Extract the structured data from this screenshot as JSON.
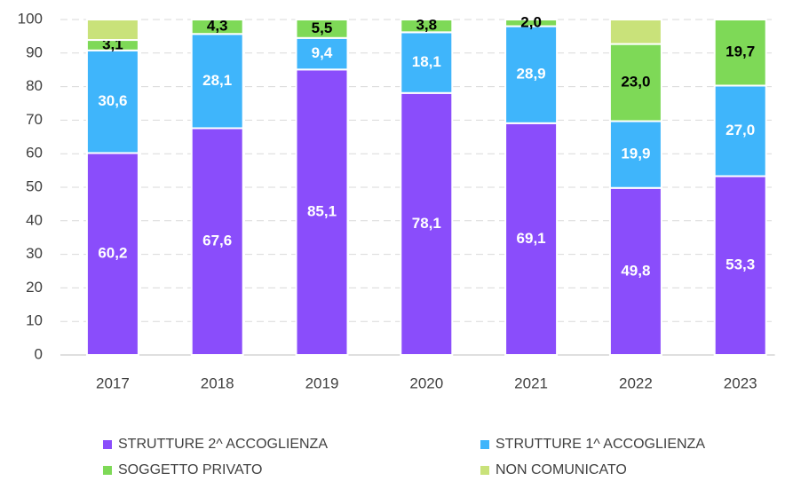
{
  "chart_data": {
    "type": "stacked_bar",
    "categories": [
      "2017",
      "2018",
      "2019",
      "2020",
      "2021",
      "2022",
      "2023"
    ],
    "series": [
      {
        "name": "STRUTTURE 2^ ACCOGLIENZA",
        "color": "#8a4dfb",
        "label_color": "#ffffff",
        "values": [
          60.2,
          67.6,
          85.1,
          78.1,
          69.1,
          49.8,
          53.3
        ],
        "value_labels": [
          "60,2",
          "67,6",
          "85,1",
          "78,1",
          "69,1",
          "49,8",
          "53,3"
        ]
      },
      {
        "name": "STRUTTURE 1^ ACCOGLIENZA",
        "color": "#3fb5fb",
        "label_color": "#ffffff",
        "values": [
          30.6,
          28.1,
          9.4,
          18.1,
          28.9,
          19.9,
          27.0
        ],
        "value_labels": [
          "30,6",
          "28,1",
          "9,4",
          "18,1",
          "28,9",
          "19,9",
          "27,0"
        ]
      },
      {
        "name": "SOGGETTO PRIVATO",
        "color": "#7ed957",
        "label_color": "#000000",
        "values": [
          3.1,
          4.3,
          5.5,
          3.8,
          2.0,
          23.0,
          19.7
        ],
        "value_labels": [
          "3,1",
          "4,3",
          "5,5",
          "3,8",
          "2,0",
          "23,0",
          "19,7"
        ]
      },
      {
        "name": "NON COMUNICATO",
        "color": "#c9e27a",
        "label_color": "#000000",
        "values": [
          6.1,
          0,
          0,
          0,
          0,
          7.3,
          0
        ],
        "value_labels": [
          null,
          null,
          null,
          null,
          null,
          null,
          null
        ]
      }
    ],
    "ylim": [
      0,
      100
    ],
    "yticks": [
      0,
      10,
      20,
      30,
      40,
      50,
      60,
      70,
      80,
      90,
      100
    ],
    "grid": true,
    "legend": "bottom"
  }
}
